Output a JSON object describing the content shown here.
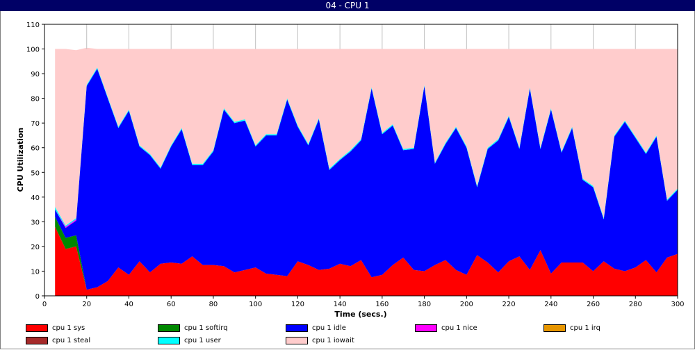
{
  "window": {
    "title": "04 - CPU 1"
  },
  "chart_data": {
    "type": "area",
    "stacked": true,
    "xlabel": "Time (secs.)",
    "ylabel": "CPU Utilization",
    "xlim": [
      0,
      300
    ],
    "ylim": [
      0,
      110
    ],
    "xticks": [
      0,
      20,
      40,
      60,
      80,
      100,
      120,
      140,
      160,
      180,
      200,
      220,
      240,
      260,
      280,
      300
    ],
    "yticks": [
      0,
      10,
      20,
      30,
      40,
      50,
      60,
      70,
      80,
      90,
      100,
      110
    ],
    "grid": true,
    "legend_position": "bottom",
    "x": [
      5,
      10,
      15,
      20,
      25,
      30,
      35,
      40,
      45,
      50,
      55,
      60,
      65,
      70,
      75,
      80,
      85,
      90,
      95,
      100,
      105,
      110,
      115,
      120,
      125,
      130,
      135,
      140,
      145,
      150,
      155,
      160,
      165,
      170,
      175,
      180,
      185,
      190,
      195,
      200,
      205,
      210,
      215,
      220,
      225,
      230,
      235,
      240,
      245,
      250,
      255,
      260,
      265,
      270,
      275,
      280,
      285,
      290,
      295,
      300
    ],
    "series": [
      {
        "name": "cpu 1 sys",
        "color": "#ff0000",
        "values": [
          28,
          19,
          20,
          2.5,
          3.5,
          6,
          11.5,
          8.5,
          14,
          9.5,
          13,
          13.5,
          13,
          16,
          12.5,
          12.5,
          12,
          9.5,
          10.5,
          11.5,
          9,
          8.5,
          8,
          14,
          12.5,
          10.5,
          11,
          13,
          12,
          14.5,
          7.5,
          8.5,
          12.5,
          15.5,
          10.5,
          10,
          12.5,
          14.5,
          10.5,
          8.5,
          16.5,
          13.5,
          9.5,
          14,
          16,
          10.5,
          18.5,
          9,
          13.5,
          13.5,
          13.5,
          10,
          14,
          11,
          10,
          11.5,
          14.5,
          9.5,
          15.5,
          17
        ]
      },
      {
        "name": "cpu 1 softirq",
        "color": "#008800",
        "values": [
          4,
          4.5,
          4.5,
          0,
          0,
          0,
          0,
          0,
          0,
          0,
          0,
          0,
          0,
          0,
          0,
          0,
          0,
          0,
          0,
          0,
          0,
          0,
          0,
          0,
          0,
          0,
          0,
          0,
          0,
          0,
          0,
          0,
          0,
          0,
          0,
          0,
          0,
          0,
          0,
          0,
          0,
          0,
          0,
          0,
          0,
          0,
          0,
          0,
          0,
          0,
          0,
          0,
          0,
          0,
          0,
          0,
          0,
          0,
          0,
          0
        ]
      },
      {
        "name": "cpu 1 idle",
        "color": "#0000ff",
        "values": [
          3,
          4,
          6,
          82.5,
          88.5,
          74,
          56.5,
          66.5,
          46.5,
          47.5,
          38.5,
          47,
          54.5,
          37,
          40.5,
          46,
          63.5,
          60.5,
          60.5,
          49,
          56,
          56.5,
          71.5,
          54.5,
          48.5,
          61,
          40,
          42,
          46.5,
          48.5,
          76.5,
          57,
          56.5,
          43.5,
          49,
          75,
          41,
          47,
          57.5,
          51.5,
          27.5,
          46,
          53.5,
          58.5,
          43.5,
          73.5,
          41,
          66.5,
          44.5,
          54.5,
          33.5,
          34,
          17,
          53.5,
          60.5,
          52.5,
          43,
          55,
          23,
          26
        ]
      },
      {
        "name": "cpu 1 nice",
        "color": "#ff00ff",
        "values": [
          0,
          0.5,
          0.5,
          0,
          0,
          0,
          0,
          0,
          0,
          0,
          0,
          0,
          0,
          0,
          0,
          0,
          0,
          0,
          0,
          0,
          0,
          0,
          0,
          0,
          0,
          0,
          0,
          0,
          0,
          0,
          0,
          0,
          0,
          0,
          0,
          0,
          0,
          0,
          0,
          0,
          0,
          0,
          0,
          0,
          0,
          0,
          0,
          0,
          0,
          0,
          0,
          0,
          0,
          0,
          0,
          0,
          0,
          0,
          0,
          0
        ]
      },
      {
        "name": "cpu 1 irq",
        "color": "#e69500",
        "values": [
          0,
          0,
          0,
          0,
          0,
          0,
          0,
          0,
          0,
          0,
          0,
          0,
          0,
          0,
          0,
          0,
          0,
          0,
          0,
          0,
          0,
          0,
          0,
          0,
          0,
          0,
          0,
          0,
          0,
          0,
          0,
          0,
          0,
          0,
          0,
          0,
          0,
          0,
          0,
          0,
          0,
          0,
          0,
          0,
          0,
          0,
          0,
          0,
          0,
          0,
          0,
          0,
          0,
          0,
          0,
          0,
          0,
          0,
          0,
          0
        ]
      },
      {
        "name": "cpu 1 steal",
        "color": "#a52a2a",
        "values": [
          0,
          0,
          0,
          0,
          0,
          0,
          0,
          0,
          0,
          0,
          0,
          0,
          0,
          0,
          0,
          0,
          0,
          0,
          0,
          0,
          0,
          0,
          0,
          0,
          0,
          0,
          0,
          0,
          0,
          0,
          0,
          0,
          0,
          0,
          0,
          0,
          0,
          0,
          0,
          0,
          0,
          0,
          0,
          0,
          0,
          0,
          0,
          0,
          0,
          0,
          0,
          0,
          0,
          0,
          0,
          0,
          0,
          0,
          0,
          0
        ]
      },
      {
        "name": "cpu 1 user",
        "color": "#00ffff",
        "values": [
          1,
          0.5,
          0.5,
          0.5,
          0.5,
          0.5,
          0.5,
          0.5,
          0.5,
          0.5,
          0.5,
          0.5,
          0.5,
          0.5,
          0.5,
          0.5,
          0.5,
          0.5,
          0.5,
          0.5,
          0.5,
          0.5,
          0.5,
          0.5,
          0.5,
          0.5,
          0.5,
          0.5,
          0.5,
          0.5,
          0.5,
          0.5,
          0.5,
          0.5,
          0.5,
          0.5,
          0.5,
          0.5,
          0.5,
          0.5,
          0.5,
          0.5,
          0.5,
          0.5,
          0.5,
          0.5,
          0.5,
          0.5,
          0.5,
          0.5,
          0.5,
          0.5,
          0.5,
          0.5,
          0.5,
          0.5,
          0.5,
          0.5,
          0.5,
          0.5
        ]
      },
      {
        "name": "cpu 1 iowait",
        "color": "#ffcccc",
        "values": [
          64,
          71.5,
          68,
          15,
          7.5,
          19.5,
          31.5,
          24.5,
          39,
          42.5,
          48,
          39,
          32,
          46.5,
          46.5,
          41,
          24,
          29.5,
          28.5,
          39,
          34.5,
          34.5,
          20,
          31,
          38.5,
          28,
          48.5,
          44.5,
          41,
          36.5,
          15.5,
          34,
          30.5,
          40.5,
          40,
          14.5,
          46,
          38,
          31.5,
          39.5,
          55.5,
          40,
          36.5,
          27,
          40,
          15.5,
          40,
          24,
          41.5,
          31.5,
          52.5,
          55.5,
          68.5,
          35,
          29,
          35.5,
          42,
          35,
          61,
          56.5
        ]
      }
    ]
  }
}
